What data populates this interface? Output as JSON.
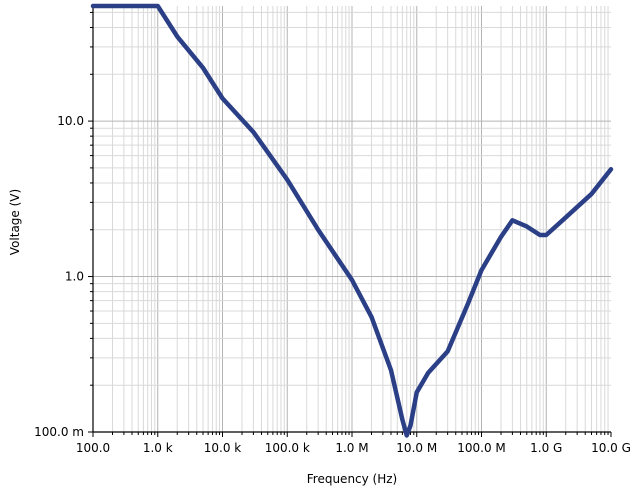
{
  "chart_data": {
    "type": "line",
    "xlabel": "Frequency (Hz)",
    "ylabel": "Voltage (V)",
    "x_scale": "log",
    "y_scale": "log",
    "xlim": [
      100,
      10000000000
    ],
    "ylim": [
      0.1,
      55
    ],
    "grid": true,
    "x_ticks": [
      {
        "value": 100,
        "label": "100.0"
      },
      {
        "value": 1000,
        "label": "1.0 k"
      },
      {
        "value": 10000,
        "label": "10.0 k"
      },
      {
        "value": 100000,
        "label": "100.0 k"
      },
      {
        "value": 1000000,
        "label": "1.0 M"
      },
      {
        "value": 10000000,
        "label": "10.0 M"
      },
      {
        "value": 100000000,
        "label": "100.0 M"
      },
      {
        "value": 1000000000,
        "label": "1.0 G"
      },
      {
        "value": 10000000000,
        "label": "10.0 G"
      }
    ],
    "y_ticks": [
      {
        "value": 0.1,
        "label": "100.0 m"
      },
      {
        "value": 1,
        "label": "1.0"
      },
      {
        "value": 10,
        "label": "10.0"
      }
    ],
    "series": [
      {
        "color": "#2b3f86",
        "x": [
          100,
          200,
          400,
          700,
          1000,
          2000,
          5000,
          10000,
          30000,
          100000,
          300000,
          1000000,
          2000000,
          4000000,
          6000000,
          7000000,
          8000000,
          10000000,
          15000000,
          30000000,
          60000000,
          100000000,
          200000000,
          300000000,
          500000000,
          800000000,
          1000000000,
          2000000000,
          5000000000,
          10000000000
        ],
        "y": [
          55,
          55,
          55,
          55,
          55,
          35,
          22,
          14,
          8.5,
          4.2,
          2.0,
          0.95,
          0.55,
          0.25,
          0.12,
          0.095,
          0.11,
          0.18,
          0.24,
          0.33,
          0.65,
          1.1,
          1.8,
          2.3,
          2.1,
          1.85,
          1.85,
          2.4,
          3.4,
          4.9
        ]
      }
    ]
  }
}
